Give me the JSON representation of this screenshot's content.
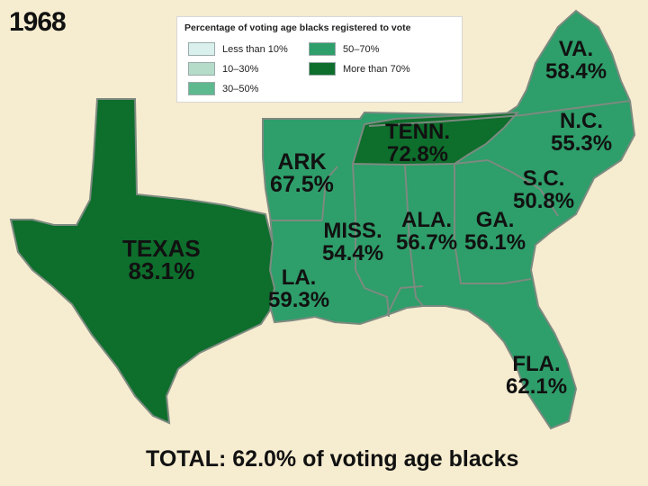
{
  "year": "1968",
  "legend": {
    "title": "Percentage of voting age blacks registered to vote",
    "items": [
      {
        "label": "Less than 10%",
        "color": "#d9f0ec"
      },
      {
        "label": "10–30%",
        "color": "#b4dcc8"
      },
      {
        "label": "30–50%",
        "color": "#5fb98e"
      },
      {
        "label": "50–70%",
        "color": "#2e9e6a"
      },
      {
        "label": "More than 70%",
        "color": "#0e6e2c"
      }
    ]
  },
  "colors": {
    "mid": "#2e9e6a",
    "high": "#0e6e2c",
    "border": "#7c8a80",
    "background": "#f6eccf"
  },
  "states": [
    {
      "name": "VA.",
      "value": "58.4%",
      "category": "50–70%"
    },
    {
      "name": "N.C.",
      "value": "55.3%",
      "category": "50–70%"
    },
    {
      "name": "S.C.",
      "value": "50.8%",
      "category": "50–70%"
    },
    {
      "name": "TENN.",
      "value": "72.8%",
      "category": "More than 70%"
    },
    {
      "name": "ARK",
      "value": "67.5%",
      "category": "50–70%"
    },
    {
      "name": "TEXAS",
      "value": "83.1%",
      "category": "More than 70%"
    },
    {
      "name": "MISS.",
      "value": "54.4%",
      "category": "50–70%"
    },
    {
      "name": "ALA.",
      "value": "56.7%",
      "category": "50–70%"
    },
    {
      "name": "GA.",
      "value": "56.1%",
      "category": "50–70%"
    },
    {
      "name": "LA.",
      "value": "59.3%",
      "category": "50–70%"
    },
    {
      "name": "FLA.",
      "value": "62.1%",
      "category": "50–70%"
    }
  ],
  "total": "TOTAL: 62.0% of voting age blacks"
}
